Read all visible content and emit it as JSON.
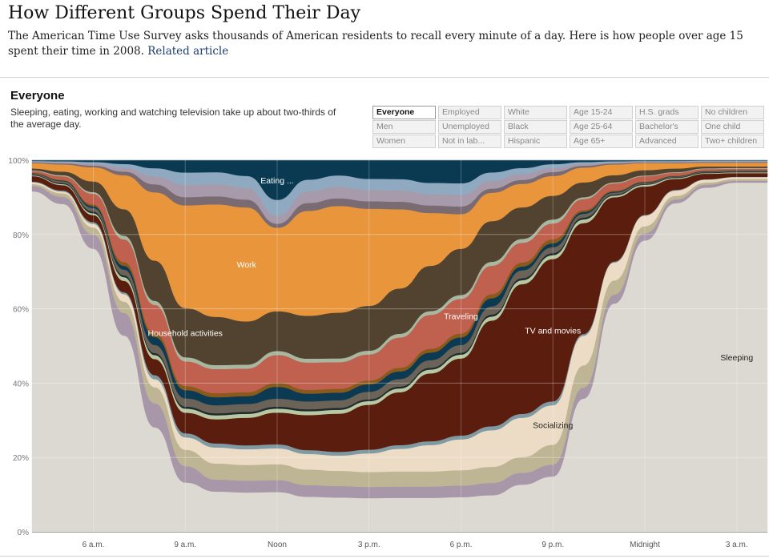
{
  "header": {
    "title": "How Different Groups Spend Their Day",
    "intro": "The American Time Use Survey asks thousands of American residents to recall every minute of a day. Here is how people over age 15 spent their time in 2008.",
    "related_link": "Related article"
  },
  "group": {
    "title": "Everyone",
    "description": "Sleeping, eating, working and watching television take up about two-thirds of the average day."
  },
  "filters": [
    {
      "label": "Everyone",
      "active": true
    },
    {
      "label": "Employed",
      "active": false
    },
    {
      "label": "White",
      "active": false
    },
    {
      "label": "Age 15-24",
      "active": false
    },
    {
      "label": "H.S. grads",
      "active": false
    },
    {
      "label": "No children",
      "active": false
    },
    {
      "label": "Men",
      "active": false
    },
    {
      "label": "Unemployed",
      "active": false
    },
    {
      "label": "Black",
      "active": false
    },
    {
      "label": "Age 25-64",
      "active": false
    },
    {
      "label": "Bachelor's",
      "active": false
    },
    {
      "label": "One child",
      "active": false
    },
    {
      "label": "Women",
      "active": false
    },
    {
      "label": "Not in lab...",
      "active": false
    },
    {
      "label": "Hispanic",
      "active": false
    },
    {
      "label": "Age 65+",
      "active": false
    },
    {
      "label": "Advanced",
      "active": false
    },
    {
      "label": "Two+ children",
      "active": false
    }
  ],
  "chart_data": {
    "type": "area",
    "stacked": true,
    "title": "Everyone",
    "y_tick_labels": [
      "0%",
      "20%",
      "40%",
      "60%",
      "80%",
      "100%"
    ],
    "ylim": [
      0,
      100
    ],
    "x_tick_labels": [
      "6 a.m.",
      "9 a.m.",
      "Noon",
      "3 p.m.",
      "6 p.m.",
      "9 p.m.",
      "Midnight",
      "3 a.m."
    ],
    "x": [
      "4 a.m.",
      "5 a.m.",
      "6 a.m.",
      "7 a.m.",
      "8 a.m.",
      "9 a.m.",
      "10 a.m.",
      "11 a.m.",
      "Noon",
      "1 p.m.",
      "2 p.m.",
      "3 p.m.",
      "4 p.m.",
      "5 p.m.",
      "6 p.m.",
      "7 p.m.",
      "8 p.m.",
      "9 p.m.",
      "10 p.m.",
      "11 p.m.",
      "Midnight",
      "1 a.m.",
      "2 a.m.",
      "3 a.m.",
      "4 a.m."
    ],
    "series": [
      {
        "name": "Sleeping",
        "color": "#dcd9d2",
        "labeled": true,
        "values": [
          94,
          92,
          80,
          52,
          26,
          12,
          10,
          10,
          10,
          9,
          9,
          9,
          9,
          9,
          9,
          9,
          12,
          14,
          36,
          64,
          82,
          91,
          94,
          95,
          95
        ]
      },
      {
        "name": "",
        "color": "#a797a8",
        "labeled": false,
        "values": [
          1.5,
          2,
          4,
          6,
          6,
          4,
          3,
          3,
          3,
          3,
          3,
          3,
          3,
          3,
          3,
          3,
          3,
          3,
          3,
          2.5,
          2,
          1,
          0.8,
          0.5,
          0.5
        ]
      },
      {
        "name": "",
        "color": "#beb594",
        "labeled": false,
        "values": [
          0.5,
          1,
          2,
          3,
          4,
          4,
          4,
          4,
          4,
          4,
          4,
          4,
          4,
          4,
          4,
          4,
          4,
          5,
          6,
          4,
          2,
          1,
          0.6,
          0.5,
          0.5
        ]
      },
      {
        "name": "Socializing",
        "color": "#ecdcc6",
        "labeled": true,
        "values": [
          0.5,
          0.5,
          1,
          2,
          2,
          3,
          4,
          4,
          4,
          4,
          4,
          5,
          6,
          7,
          8,
          9,
          10,
          10,
          8,
          5,
          3,
          1.5,
          0.8,
          0.5,
          0.5
        ]
      },
      {
        "name": "",
        "color": "#7f9aa2",
        "labeled": false,
        "values": [
          0.2,
          0.3,
          0.5,
          0.5,
          1,
          1,
          1,
          1,
          1,
          1,
          1,
          1,
          1,
          1,
          1,
          1,
          1,
          1,
          0.5,
          0.3,
          0.2,
          0.2,
          0.1,
          0.1,
          0.1
        ]
      },
      {
        "name": "TV and movies",
        "color": "#5b1d0e",
        "labeled": true,
        "values": [
          1.5,
          1.5,
          2,
          3,
          4,
          5,
          6,
          7,
          8,
          9,
          10,
          12,
          14,
          18,
          20,
          26,
          33,
          36,
          30,
          18,
          8,
          3,
          1.5,
          1,
          1
        ]
      },
      {
        "name": "",
        "color": "#b8c8a2",
        "labeled": false,
        "values": [
          0.2,
          0.3,
          0.5,
          1,
          1,
          1,
          1,
          1,
          1,
          1,
          1,
          1,
          1,
          1,
          1,
          1,
          1,
          1,
          1,
          0.5,
          0.5,
          0.3,
          0.2,
          0.2,
          0.2
        ]
      },
      {
        "name": "",
        "color": "#1f2a2c",
        "labeled": false,
        "values": [
          0.2,
          0.3,
          0.5,
          0.5,
          0.5,
          0.5,
          0.5,
          0.5,
          0.5,
          0.5,
          0.5,
          0.5,
          0.5,
          0.5,
          0.5,
          0.5,
          0.5,
          0.5,
          0.5,
          0.3,
          0.2,
          0.2,
          0.2,
          0.2,
          0.2
        ]
      },
      {
        "name": "",
        "color": "#6b6358",
        "labeled": false,
        "values": [
          0.3,
          0.5,
          1,
          1.5,
          2,
          2,
          2,
          2,
          2,
          2,
          2,
          2,
          2,
          2,
          2,
          2,
          2,
          1.5,
          1,
          0.5,
          0.3,
          0.2,
          0.2,
          0.2,
          0.2
        ]
      },
      {
        "name": "",
        "color": "#0c3a52",
        "labeled": false,
        "values": [
          0.1,
          0.2,
          0.5,
          1,
          2,
          2,
          2,
          2,
          3,
          2,
          2,
          2,
          2,
          2,
          2,
          2,
          1,
          1,
          0.5,
          0.3,
          0.2,
          0.1,
          0.1,
          0.1,
          0.1
        ]
      },
      {
        "name": "",
        "color": "#8a5a1c",
        "labeled": false,
        "values": [
          0.1,
          0.2,
          0.5,
          1,
          1,
          1,
          1,
          1,
          1,
          1,
          1,
          1,
          1,
          1,
          1,
          1,
          1,
          1,
          0.5,
          0.3,
          0.2,
          0.1,
          0.1,
          0.1,
          0.1
        ]
      },
      {
        "name": "Traveling",
        "color": "#c0604e",
        "labeled": true,
        "values": [
          0.5,
          1,
          3,
          6,
          7,
          6,
          6,
          6,
          7,
          7,
          7,
          7,
          8,
          9,
          9,
          7,
          5,
          4,
          3,
          2,
          1.5,
          0.8,
          0.5,
          0.4,
          0.4
        ]
      },
      {
        "name": "",
        "color": "#a9b7a0",
        "labeled": false,
        "values": [
          0.2,
          0.3,
          0.5,
          1,
          1,
          1,
          1,
          1,
          1,
          1,
          1,
          1,
          1,
          1,
          1,
          1,
          1,
          1,
          0.5,
          0.3,
          0.2,
          0.2,
          0.2,
          0.2,
          0.2
        ]
      },
      {
        "name": "Household activities",
        "color": "#51432f",
        "labeled": true,
        "values": [
          0.5,
          1,
          3,
          7,
          10,
          12,
          12,
          11,
          10,
          11,
          12,
          12,
          12,
          12,
          12,
          10,
          8,
          6,
          4,
          2,
          1.5,
          1,
          0.5,
          0.4,
          0.4
        ]
      },
      {
        "name": "Work",
        "color": "#e8953c",
        "labeled": true,
        "values": [
          1.5,
          2,
          4,
          9,
          17,
          25,
          28,
          29,
          21,
          27,
          28,
          26,
          21,
          14,
          9,
          7,
          6,
          5,
          4,
          3,
          2,
          1.5,
          1,
          1,
          1
        ]
      },
      {
        "name": "",
        "color": "#7a6a72",
        "labeled": false,
        "values": [
          0.2,
          0.3,
          0.5,
          1,
          2,
          2,
          2,
          2,
          1,
          2,
          2,
          2,
          2,
          2,
          2,
          1,
          1,
          1,
          0.5,
          0.3,
          0.2,
          0.2,
          0.2,
          0.2,
          0.2
        ]
      },
      {
        "name": "",
        "color": "#a69aab",
        "labeled": false,
        "values": [
          0.2,
          0.3,
          0.5,
          1,
          2,
          3,
          3,
          3,
          2,
          3,
          3,
          3,
          3,
          3,
          3,
          2,
          1.5,
          1,
          0.5,
          0.3,
          0.2,
          0.2,
          0.2,
          0.2,
          0.2
        ]
      },
      {
        "name": "",
        "color": "#8faac0",
        "labeled": false,
        "values": [
          0.2,
          0.3,
          0.5,
          1,
          2,
          3,
          3,
          3,
          4,
          3,
          3,
          3,
          3,
          3,
          3,
          2,
          1.5,
          1,
          0.5,
          0.3,
          0.2,
          0.2,
          0.2,
          0.2,
          0.2
        ]
      },
      {
        "name": "Eating ...",
        "color": "#093a52",
        "labeled": true,
        "values": [
          0.2,
          0.3,
          0.5,
          1,
          2,
          3,
          3,
          4,
          10,
          5,
          4,
          5,
          5,
          6,
          6,
          3,
          2,
          1,
          0.5,
          0.3,
          0.2,
          0.2,
          0.1,
          0.1,
          0.1
        ]
      }
    ]
  }
}
